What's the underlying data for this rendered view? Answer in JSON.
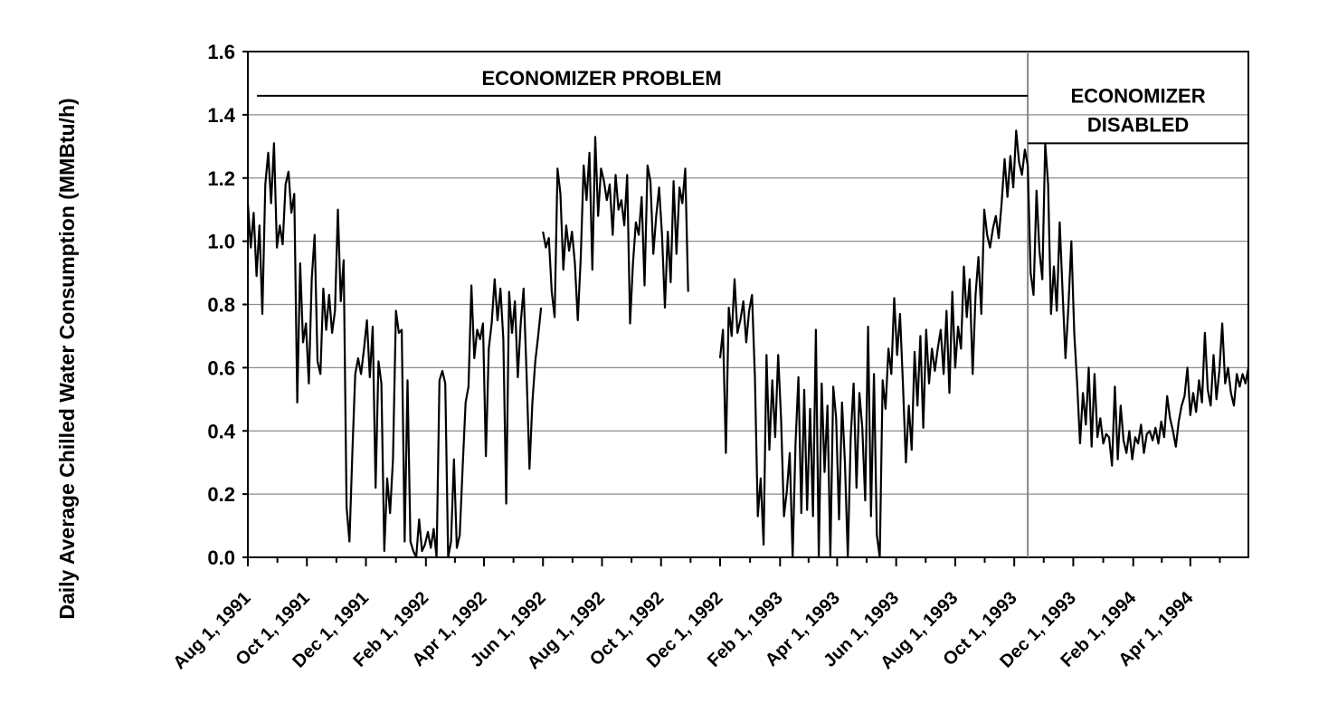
{
  "chart_data": {
    "type": "line",
    "title": "",
    "ylabel": "Daily Average Chilled Water Consumption (MMBtu/h)",
    "xlabel": "",
    "ylim": [
      0,
      1.6
    ],
    "yticks": [
      "0.0",
      "0.2",
      "0.4",
      "0.6",
      "0.8",
      "1.0",
      "1.2",
      "1.4",
      "1.6"
    ],
    "ytick_values": [
      0,
      0.2,
      0.4,
      0.6,
      0.8,
      1.0,
      1.2,
      1.4,
      1.6
    ],
    "xlim": [
      "1991-08-01",
      "1994-05-31"
    ],
    "xticks": [
      "Aug 1, 1991",
      "Oct 1, 1991",
      "Dec 1, 1991",
      "Feb 1, 1992",
      "Apr 1, 1992",
      "Jun 1, 1992",
      "Aug 1, 1992",
      "Oct 1, 1992",
      "Dec 1, 1992",
      "Feb 1, 1993",
      "Apr 1, 1993",
      "Jun 1, 1993",
      "Aug 1, 1993",
      "Oct 1, 1993",
      "Dec 1, 1993",
      "Feb 1, 1994",
      "Apr 1, 1994"
    ],
    "xtick_dates": [
      "1991-08-01",
      "1991-10-01",
      "1991-12-01",
      "1992-02-01",
      "1992-04-01",
      "1992-06-01",
      "1992-08-01",
      "1992-10-01",
      "1992-12-01",
      "1993-02-01",
      "1993-04-01",
      "1993-06-01",
      "1993-08-01",
      "1993-10-01",
      "1993-12-01",
      "1994-02-01",
      "1994-04-01"
    ],
    "grid": true,
    "legend": false,
    "annotations": [
      {
        "text": "ECONOMIZER PROBLEM",
        "from": "1991-08-01",
        "to": "1993-10-15",
        "y_level": 1.46
      },
      {
        "text": "ECONOMIZER\nDISABLED",
        "from": "1993-10-15",
        "to": "1994-05-31",
        "y_level": 1.31
      }
    ],
    "annotation_labels": {
      "problem": "ECONOMIZER PROBLEM",
      "disabled_line1": "ECONOMIZER",
      "disabled_line2": "DISABLED"
    },
    "divider_date": "1993-10-15",
    "series": [
      {
        "color": "#000000",
        "segments": [
          {
            "x": [
              "1991-08-01",
              "1991-08-04",
              "1991-08-07",
              "1991-08-10",
              "1991-08-13",
              "1991-08-16",
              "1991-08-19",
              "1991-08-22",
              "1991-08-25",
              "1991-08-28",
              "1991-08-31",
              "1991-09-03",
              "1991-09-06",
              "1991-09-09",
              "1991-09-12",
              "1991-09-15",
              "1991-09-18",
              "1991-09-21",
              "1991-09-24",
              "1991-09-27",
              "1991-09-30",
              "1991-10-03",
              "1991-10-06",
              "1991-10-09",
              "1991-10-12",
              "1991-10-15",
              "1991-10-18",
              "1991-10-21",
              "1991-10-24",
              "1991-10-27",
              "1991-10-30",
              "1991-11-02",
              "1991-11-05",
              "1991-11-08",
              "1991-11-11",
              "1991-11-14",
              "1991-11-17",
              "1991-11-20",
              "1991-11-23",
              "1991-11-26",
              "1991-11-29",
              "1991-12-02",
              "1991-12-05",
              "1991-12-08",
              "1991-12-11",
              "1991-12-14",
              "1991-12-17",
              "1991-12-20",
              "1991-12-23",
              "1991-12-26",
              "1991-12-29",
              "1992-01-01",
              "1992-01-04",
              "1992-01-07",
              "1992-01-10",
              "1992-01-13",
              "1992-01-16",
              "1992-01-19",
              "1992-01-22",
              "1992-01-25",
              "1992-01-28",
              "1992-01-31",
              "1992-02-03",
              "1992-02-06",
              "1992-02-09",
              "1992-02-12",
              "1992-02-15",
              "1992-02-18",
              "1992-02-21",
              "1992-02-24",
              "1992-02-27",
              "1992-03-01",
              "1992-03-04",
              "1992-03-07",
              "1992-03-10",
              "1992-03-13",
              "1992-03-16",
              "1992-03-19",
              "1992-03-22",
              "1992-03-25",
              "1992-03-28",
              "1992-03-31",
              "1992-04-03",
              "1992-04-06",
              "1992-04-09",
              "1992-04-12",
              "1992-04-15",
              "1992-04-18",
              "1992-04-21",
              "1992-04-24",
              "1992-04-27",
              "1992-04-30",
              "1992-05-03",
              "1992-05-06",
              "1992-05-09",
              "1992-05-12",
              "1992-05-15",
              "1992-05-18",
              "1992-05-21",
              "1992-05-24",
              "1992-05-27",
              "1992-05-30"
            ],
            "y": [
              1.12,
              0.98,
              1.09,
              0.89,
              1.05,
              0.77,
              1.18,
              1.28,
              1.12,
              1.31,
              0.98,
              1.05,
              0.99,
              1.18,
              1.22,
              1.09,
              1.15,
              0.49,
              0.93,
              0.68,
              0.74,
              0.55,
              0.88,
              1.02,
              0.62,
              0.58,
              0.85,
              0.72,
              0.83,
              0.71,
              0.78,
              1.1,
              0.81,
              0.94,
              0.16,
              0.05,
              0.33,
              0.58,
              0.63,
              0.58,
              0.66,
              0.75,
              0.57,
              0.73,
              0.22,
              0.62,
              0.55,
              0.02,
              0.25,
              0.14,
              0.31,
              0.78,
              0.71,
              0.72,
              0.05,
              0.56,
              0.05,
              0.02,
              0.0,
              0.12,
              0.02,
              0.04,
              0.08,
              0.03,
              0.09,
              0.0,
              0.56,
              0.59,
              0.55,
              0.0,
              0.05,
              0.31,
              0.03,
              0.07,
              0.29,
              0.49,
              0.54,
              0.86,
              0.63,
              0.72,
              0.69,
              0.74,
              0.32,
              0.66,
              0.74,
              0.88,
              0.75,
              0.85,
              0.69,
              0.17,
              0.84,
              0.71,
              0.81,
              0.57,
              0.74,
              0.85,
              0.58,
              0.28,
              0.49,
              0.62,
              0.7,
              0.79
            ]
          },
          {
            "x": [
              "1992-06-01",
              "1992-06-04",
              "1992-06-07",
              "1992-06-10",
              "1992-06-13",
              "1992-06-16",
              "1992-06-19",
              "1992-06-22",
              "1992-06-25",
              "1992-06-28",
              "1992-07-01",
              "1992-07-04",
              "1992-07-07",
              "1992-07-10",
              "1992-07-13",
              "1992-07-16",
              "1992-07-19",
              "1992-07-22",
              "1992-07-25",
              "1992-07-28",
              "1992-07-31",
              "1992-08-03",
              "1992-08-06",
              "1992-08-09",
              "1992-08-12",
              "1992-08-15",
              "1992-08-18",
              "1992-08-21",
              "1992-08-24",
              "1992-08-27",
              "1992-08-30",
              "1992-09-02",
              "1992-09-05",
              "1992-09-08",
              "1992-09-11",
              "1992-09-14",
              "1992-09-17",
              "1992-09-20",
              "1992-09-23",
              "1992-09-26",
              "1992-09-29",
              "1992-10-02",
              "1992-10-05",
              "1992-10-08",
              "1992-10-11",
              "1992-10-14",
              "1992-10-17",
              "1992-10-20",
              "1992-10-23",
              "1992-10-26",
              "1992-10-29"
            ],
            "y": [
              1.03,
              0.98,
              1.01,
              0.84,
              0.76,
              1.23,
              1.15,
              0.91,
              1.05,
              0.97,
              1.03,
              0.93,
              0.75,
              0.95,
              1.24,
              1.13,
              1.28,
              0.91,
              1.33,
              1.08,
              1.23,
              1.19,
              1.13,
              1.18,
              1.02,
              1.21,
              1.1,
              1.13,
              1.05,
              1.21,
              0.74,
              0.93,
              1.06,
              1.02,
              1.14,
              0.86,
              1.24,
              1.19,
              0.96,
              1.08,
              1.17,
              1.02,
              0.79,
              1.03,
              0.87,
              1.19,
              0.96,
              1.17,
              1.12,
              1.23,
              0.84
            ]
          },
          {
            "x": [
              "1992-12-01",
              "1992-12-04",
              "1992-12-07",
              "1992-12-10",
              "1992-12-13",
              "1992-12-16",
              "1992-12-19",
              "1992-12-22",
              "1992-12-25",
              "1992-12-28",
              "1992-12-31",
              "1993-01-03",
              "1993-01-06",
              "1993-01-09",
              "1993-01-12",
              "1993-01-15",
              "1993-01-18",
              "1993-01-21",
              "1993-01-24",
              "1993-01-27",
              "1993-01-30",
              "1993-02-02",
              "1993-02-05",
              "1993-02-08",
              "1993-02-11",
              "1993-02-14",
              "1993-02-17",
              "1993-02-20",
              "1993-02-23",
              "1993-02-26",
              "1993-03-01",
              "1993-03-04",
              "1993-03-07",
              "1993-03-10",
              "1993-03-13",
              "1993-03-16",
              "1993-03-19",
              "1993-03-22",
              "1993-03-25",
              "1993-03-28",
              "1993-03-31",
              "1993-04-03",
              "1993-04-06",
              "1993-04-09",
              "1993-04-12",
              "1993-04-15",
              "1993-04-18",
              "1993-04-21",
              "1993-04-24",
              "1993-04-27",
              "1993-04-30",
              "1993-05-03",
              "1993-05-06",
              "1993-05-09",
              "1993-05-12",
              "1993-05-15",
              "1993-05-18",
              "1993-05-21",
              "1993-05-24",
              "1993-05-27",
              "1993-05-30",
              "1993-06-02",
              "1993-06-05",
              "1993-06-08",
              "1993-06-11",
              "1993-06-14",
              "1993-06-17",
              "1993-06-20",
              "1993-06-23",
              "1993-06-26",
              "1993-06-29",
              "1993-07-02",
              "1993-07-05",
              "1993-07-08",
              "1993-07-11",
              "1993-07-14",
              "1993-07-17",
              "1993-07-20",
              "1993-07-23",
              "1993-07-26",
              "1993-07-29",
              "1993-08-01",
              "1993-08-04",
              "1993-08-07",
              "1993-08-10",
              "1993-08-13",
              "1993-08-16",
              "1993-08-19",
              "1993-08-22",
              "1993-08-25",
              "1993-08-28",
              "1993-08-31",
              "1993-09-03",
              "1993-09-06",
              "1993-09-09",
              "1993-09-12",
              "1993-09-15",
              "1993-09-18",
              "1993-09-21",
              "1993-09-24",
              "1993-09-27",
              "1993-09-30",
              "1993-10-03",
              "1993-10-06",
              "1993-10-09",
              "1993-10-12",
              "1993-10-15"
            ],
            "y": [
              0.63,
              0.72,
              0.33,
              0.79,
              0.7,
              0.88,
              0.71,
              0.75,
              0.81,
              0.68,
              0.78,
              0.83,
              0.57,
              0.13,
              0.25,
              0.04,
              0.64,
              0.34,
              0.56,
              0.38,
              0.64,
              0.44,
              0.13,
              0.21,
              0.33,
              0.0,
              0.36,
              0.57,
              0.14,
              0.53,
              0.15,
              0.47,
              0.13,
              0.72,
              0.0,
              0.55,
              0.27,
              0.48,
              0.0,
              0.54,
              0.44,
              0.12,
              0.49,
              0.3,
              0.0,
              0.38,
              0.55,
              0.22,
              0.52,
              0.41,
              0.18,
              0.73,
              0.13,
              0.58,
              0.07,
              0.0,
              0.56,
              0.47,
              0.66,
              0.58,
              0.82,
              0.64,
              0.77,
              0.55,
              0.3,
              0.48,
              0.34,
              0.65,
              0.48,
              0.7,
              0.41,
              0.72,
              0.55,
              0.66,
              0.59,
              0.66,
              0.72,
              0.58,
              0.78,
              0.52,
              0.84,
              0.6,
              0.73,
              0.66,
              0.92,
              0.76,
              0.88,
              0.58,
              0.83,
              0.95,
              0.77,
              1.1,
              1.02,
              0.98,
              1.04,
              1.08,
              1.01,
              1.12,
              1.26,
              1.14,
              1.27,
              1.17,
              1.35,
              1.25,
              1.21,
              1.29,
              1.24
            ]
          },
          {
            "x": [
              "1993-10-15",
              "1993-10-18",
              "1993-10-21",
              "1993-10-24",
              "1993-10-27",
              "1993-10-30",
              "1993-11-02",
              "1993-11-05",
              "1993-11-08",
              "1993-11-11",
              "1993-11-14",
              "1993-11-17",
              "1993-11-20",
              "1993-11-23",
              "1993-11-26",
              "1993-11-29",
              "1993-12-02",
              "1993-12-05",
              "1993-12-08",
              "1993-12-11",
              "1993-12-14",
              "1993-12-17",
              "1993-12-20",
              "1993-12-23",
              "1993-12-26",
              "1993-12-29",
              "1994-01-01",
              "1994-01-04",
              "1994-01-07",
              "1994-01-10",
              "1994-01-13",
              "1994-01-16",
              "1994-01-19",
              "1994-01-22",
              "1994-01-25",
              "1994-01-28",
              "1994-01-31",
              "1994-02-03",
              "1994-02-06",
              "1994-02-09",
              "1994-02-12",
              "1994-02-15",
              "1994-02-18",
              "1994-02-21",
              "1994-02-24",
              "1994-02-27",
              "1994-03-02",
              "1994-03-05",
              "1994-03-08",
              "1994-03-11",
              "1994-03-14",
              "1994-03-17",
              "1994-03-20",
              "1994-03-23",
              "1994-03-26",
              "1994-03-29",
              "1994-04-01",
              "1994-04-04",
              "1994-04-07",
              "1994-04-10",
              "1994-04-13",
              "1994-04-16",
              "1994-04-19",
              "1994-04-22",
              "1994-04-25",
              "1994-04-28",
              "1994-05-01",
              "1994-05-04",
              "1994-05-07",
              "1994-05-10",
              "1994-05-13",
              "1994-05-16",
              "1994-05-19",
              "1994-05-22",
              "1994-05-25",
              "1994-05-28",
              "1994-05-31"
            ],
            "y": [
              1.24,
              0.9,
              0.83,
              1.16,
              0.97,
              0.88,
              1.31,
              1.18,
              0.77,
              0.92,
              0.78,
              1.06,
              0.84,
              0.63,
              0.79,
              1.0,
              0.71,
              0.55,
              0.36,
              0.52,
              0.42,
              0.6,
              0.35,
              0.58,
              0.38,
              0.44,
              0.36,
              0.39,
              0.38,
              0.29,
              0.54,
              0.31,
              0.48,
              0.37,
              0.33,
              0.4,
              0.31,
              0.38,
              0.36,
              0.42,
              0.33,
              0.39,
              0.4,
              0.37,
              0.41,
              0.36,
              0.43,
              0.38,
              0.51,
              0.44,
              0.4,
              0.35,
              0.43,
              0.48,
              0.51,
              0.6,
              0.45,
              0.52,
              0.46,
              0.56,
              0.49,
              0.71,
              0.53,
              0.48,
              0.64,
              0.5,
              0.59,
              0.74,
              0.55,
              0.6,
              0.52,
              0.48,
              0.58,
              0.54,
              0.58,
              0.55,
              0.6
            ]
          }
        ]
      }
    ]
  }
}
